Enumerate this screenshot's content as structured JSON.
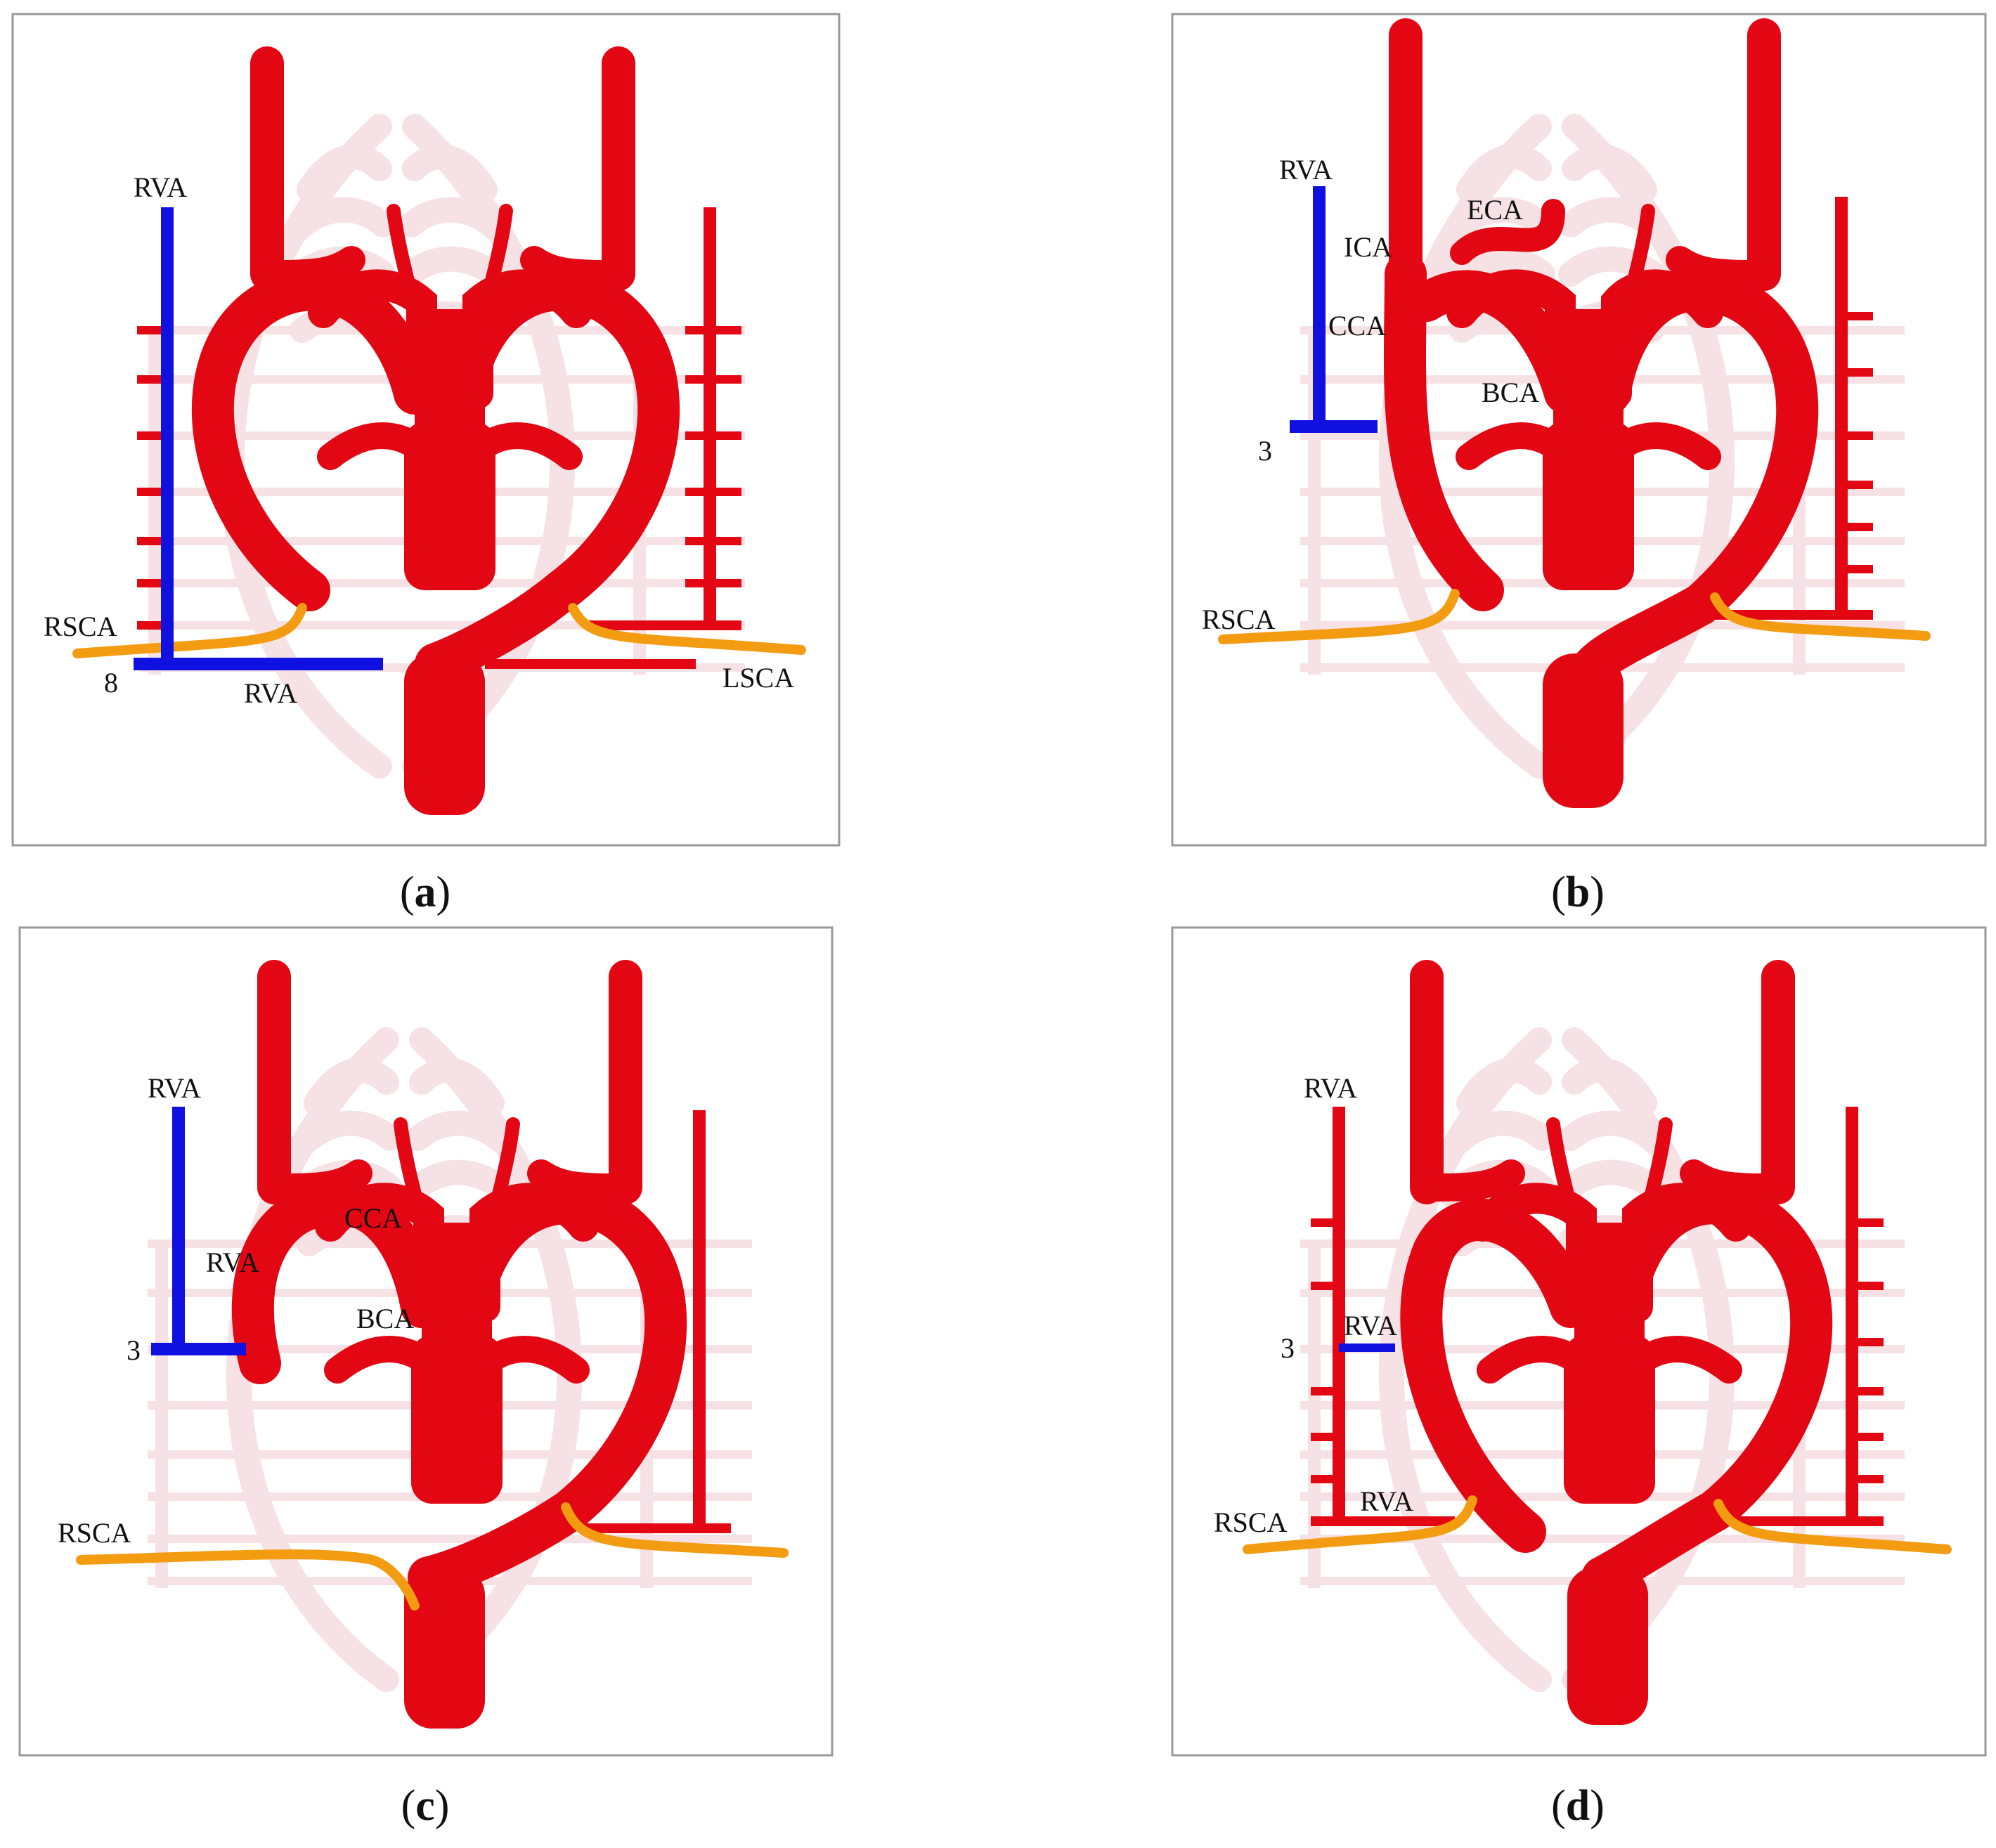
{
  "colors": {
    "artery": "#e30613",
    "artery_faint": "#f6e2e4",
    "vertebral_highlight": "#1010e0",
    "subclavian": "#f39c12",
    "frame": "#999999",
    "text": "#111111"
  },
  "panels": [
    {
      "id": "a",
      "caption": {
        "open": "(",
        "letter": "a",
        "close": ")"
      },
      "labels": {
        "rva_top": "RVA",
        "rsca": "RSCA",
        "level": "8",
        "rva_bottom": "RVA",
        "lsca": "LSCA"
      }
    },
    {
      "id": "b",
      "caption": {
        "open": "(",
        "letter": "b",
        "close": ")"
      },
      "labels": {
        "rva_top": "RVA",
        "eca": "ECA",
        "ica": "ICA",
        "cca": "CCA",
        "bca": "BCA",
        "level": "3",
        "rsca": "RSCA"
      }
    },
    {
      "id": "c",
      "caption": {
        "open": "(",
        "letter": "c",
        "close": ")"
      },
      "labels": {
        "rva_top": "RVA",
        "cca": "CCA",
        "rva_mid": "RVA",
        "bca": "BCA",
        "level": "3",
        "rsca": "RSCA"
      }
    },
    {
      "id": "d",
      "caption": {
        "open": "(",
        "letter": "d",
        "close": ")"
      },
      "labels": {
        "rva_top": "RVA",
        "level": "3",
        "rva_mid": "RVA",
        "rva_low": "RVA",
        "rsca": "RSCA"
      }
    }
  ]
}
